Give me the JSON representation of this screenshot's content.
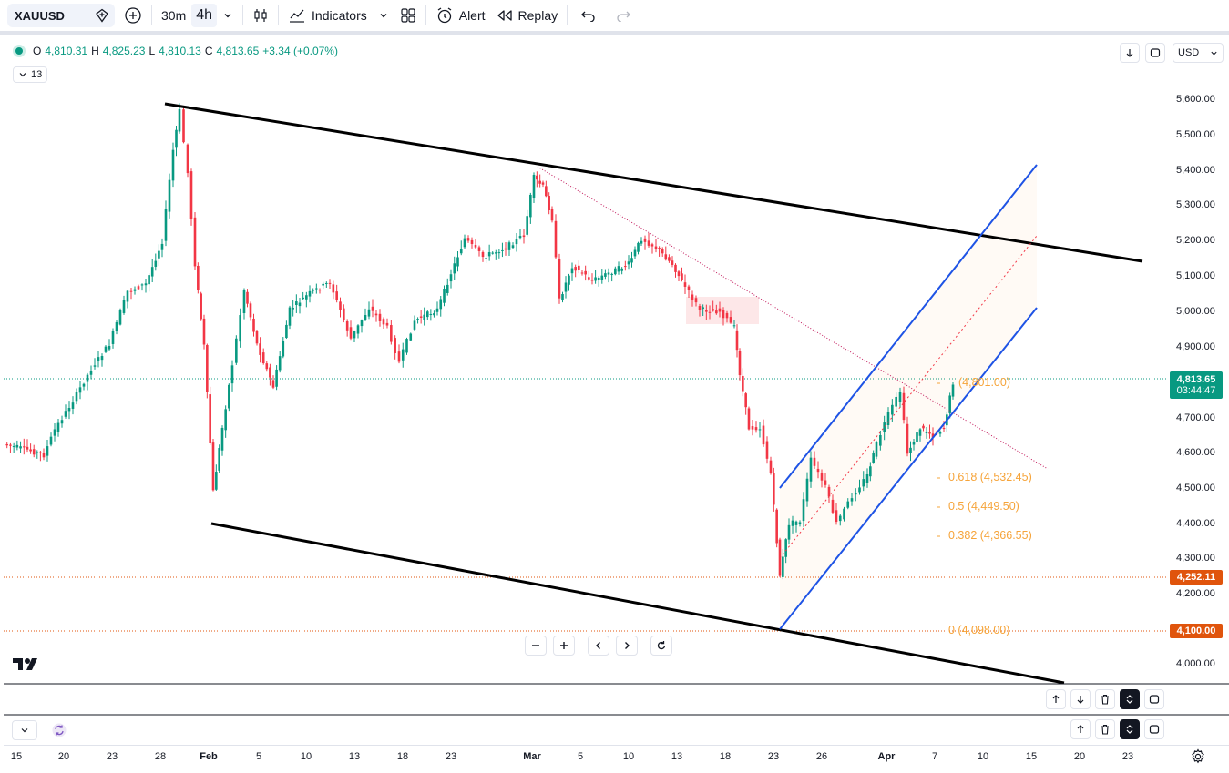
{
  "toolbar": {
    "symbol": "XAUUSD",
    "timeframes": [
      "30m",
      "4h"
    ],
    "active_timeframe": "4h",
    "indicators_label": "Indicators",
    "alert_label": "Alert",
    "replay_label": "Replay"
  },
  "legend": {
    "open_key": "O",
    "open": "4,810.31",
    "high_key": "H",
    "high": "4,825.23",
    "low_key": "L",
    "low": "4,810.13",
    "close_key": "C",
    "close": "4,813.65",
    "change": "+3.34 (+0.07%)",
    "indicator_count": "13"
  },
  "currency": "USD",
  "colors": {
    "up": "#089981",
    "down": "#f23645",
    "channel": "#1e53e5",
    "fib": "#f6a43a",
    "tag_orange": "#e0540c"
  },
  "price_axis": [
    "5,600.00",
    "5,500.00",
    "5,400.00",
    "5,300.00",
    "5,200.00",
    "5,100.00",
    "5,000.00",
    "4,900.00",
    "4,700.00",
    "4,600.00",
    "4,500.00",
    "4,400.00",
    "4,300.00",
    "4,200.00",
    "4,000.00"
  ],
  "price_tags": {
    "last_price": "4,813.65",
    "countdown": "03:44:47",
    "level_1": "4,252.11",
    "level_2": "4,100.00"
  },
  "fib_labels": {
    "top": "(4,801.00)",
    "l618": "0.618 (4,532.45)",
    "l5": "0.5 (4,449.50)",
    "l382": "0.382 (4,366.55)",
    "zero": "0 (4,098.00)"
  },
  "time_axis": [
    "15",
    "20",
    "23",
    "28",
    "Feb",
    "5",
    "10",
    "13",
    "18",
    "23",
    "Mar",
    "5",
    "10",
    "13",
    "18",
    "23",
    "26",
    "Apr",
    "7",
    "10",
    "15",
    "20",
    "23"
  ],
  "time_axis_major": [
    "Feb",
    "Mar",
    "Apr"
  ]
}
